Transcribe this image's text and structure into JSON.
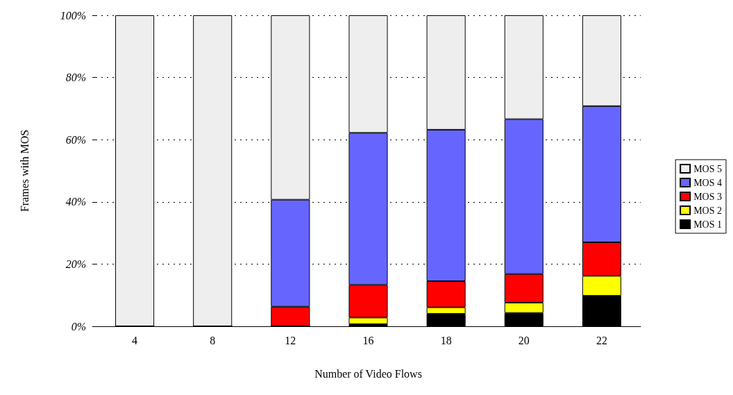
{
  "chart_data": {
    "type": "bar",
    "stacked": true,
    "xlabel": "Number of Video Flows",
    "ylabel": "Frames with MOS",
    "categories": [
      "4",
      "8",
      "12",
      "16",
      "18",
      "20",
      "22"
    ],
    "series": [
      {
        "name": "MOS 1",
        "color": "#000000",
        "values": [
          0,
          0,
          0,
          0.7,
          4.0,
          4.3,
          9.8
        ]
      },
      {
        "name": "MOS 2",
        "color": "#ffff00",
        "values": [
          0,
          0,
          0,
          2.1,
          2.1,
          3.3,
          6.4
        ]
      },
      {
        "name": "MOS 3",
        "color": "#ff0000",
        "values": [
          0,
          0,
          6.3,
          10.5,
          8.4,
          9.2,
          10.8
        ]
      },
      {
        "name": "MOS 4",
        "color": "#6666ff",
        "values": [
          0,
          0,
          34.4,
          48.9,
          48.7,
          49.8,
          43.8
        ]
      },
      {
        "name": "MOS 5",
        "color": "#eeeeee",
        "values": [
          100,
          100,
          59.3,
          37.8,
          36.8,
          33.4,
          29.2
        ]
      }
    ],
    "ylim": [
      0,
      100
    ],
    "yticks": [
      {
        "value": 0,
        "label": "0%"
      },
      {
        "value": 20,
        "label": "20%"
      },
      {
        "value": 40,
        "label": "40%"
      },
      {
        "value": 60,
        "label": "60%"
      },
      {
        "value": 80,
        "label": "80%"
      },
      {
        "value": 100,
        "label": "100%"
      }
    ],
    "grid": "y",
    "legend": "right"
  }
}
